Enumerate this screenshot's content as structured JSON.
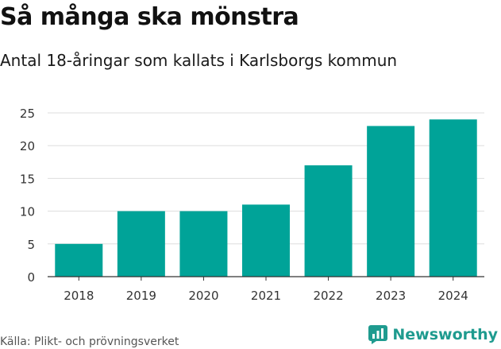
{
  "title": "Så många ska mönstra",
  "subtitle": "Antal 18-åringar som kallats i Karlsborgs kommun",
  "source": "Källa: Plikt- och prövningsverket",
  "brand": "Newsworthy",
  "colors": {
    "bar": "#00A398",
    "grid": "#dddddd",
    "axis": "#333333",
    "brand": "#1f9b8f"
  },
  "chart_data": {
    "type": "bar",
    "title": "Så många ska mönstra",
    "subtitle": "Antal 18-åringar som kallats i Karlsborgs kommun",
    "xlabel": "",
    "ylabel": "",
    "categories": [
      "2018",
      "2019",
      "2020",
      "2021",
      "2022",
      "2023",
      "2024"
    ],
    "values": [
      5,
      10,
      10,
      11,
      17,
      23,
      24
    ],
    "ylim": [
      0,
      25
    ],
    "yticks": [
      0,
      5,
      10,
      15,
      20,
      25
    ],
    "grid": true,
    "legend": "none"
  }
}
